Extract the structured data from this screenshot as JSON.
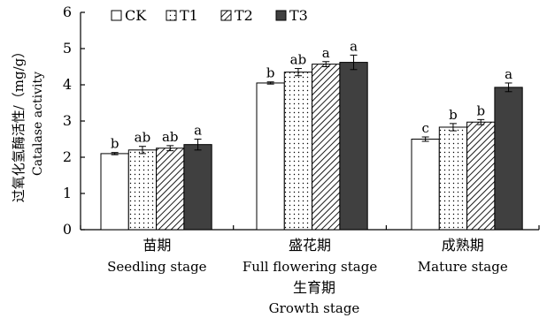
{
  "chart_data": {
    "type": "bar",
    "categories": [
      {
        "zh": "苗期",
        "en": "Seedling stage"
      },
      {
        "zh": "盛花期",
        "en": "Full flowering stage"
      },
      {
        "zh": "成熟期",
        "en": "Mature stage"
      }
    ],
    "series": [
      {
        "name": "CK",
        "fill": "white",
        "values": [
          2.1,
          4.05,
          2.5
        ],
        "errors": [
          0.03,
          0.03,
          0.06
        ],
        "letters": [
          "b",
          "b",
          "c"
        ]
      },
      {
        "name": "T1",
        "fill": "dotted",
        "values": [
          2.2,
          4.35,
          2.83
        ],
        "errors": [
          0.1,
          0.1,
          0.1
        ],
        "letters": [
          "ab",
          "ab",
          "b"
        ]
      },
      {
        "name": "T2",
        "fill": "hatched",
        "values": [
          2.25,
          4.57,
          2.97
        ],
        "errors": [
          0.07,
          0.07,
          0.07
        ],
        "letters": [
          "ab",
          "a",
          "b"
        ]
      },
      {
        "name": "T3",
        "fill": "dark",
        "values": [
          2.35,
          4.62,
          3.93
        ],
        "errors": [
          0.15,
          0.2,
          0.12
        ],
        "letters": [
          "a",
          "a",
          "a"
        ]
      }
    ],
    "ylabel_zh": "过氧化氢酶活性/（mg/g）",
    "ylabel_en": "Catalase activity",
    "xlabel_zh": "生育期",
    "xlabel_en": "Growth stage",
    "ylim": [
      0,
      6
    ],
    "yticks": [
      "0",
      "1",
      "2",
      "3",
      "4",
      "5",
      "6"
    ],
    "legend_position": "top-left",
    "grid": false,
    "colors": {
      "dark": "#404040",
      "line": "#000000",
      "white": "#ffffff"
    }
  }
}
